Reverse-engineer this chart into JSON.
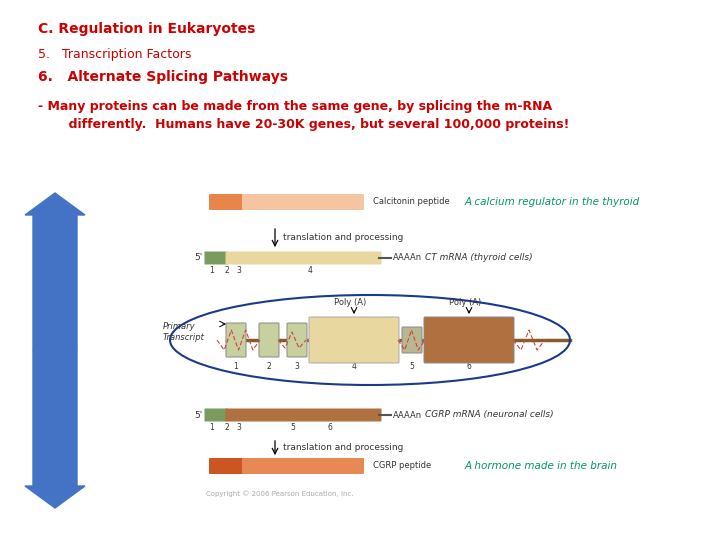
{
  "bg_color": "#ffffff",
  "title1": "C. Regulation in Eukaryotes",
  "title1_color": "#cc0000",
  "title2": "5.   Transcription Factors",
  "title2_color": "#cc0000",
  "title3": "6.   Alternate Splicing Pathways",
  "title3_color": "#cc0000",
  "body1_line1": "- Many proteins can be made from the same gene, by splicing the m-RNA",
  "body1_line2": "       differently.  Humans have 20-30K genes, but several 100,000 proteins!",
  "body_color": "#cc0000",
  "annotation1": "A calcium regulator in the thyroid",
  "annotation1_color": "#009966",
  "annotation2": "A hormone made in the brain",
  "annotation2_color": "#009966",
  "calcitonin_label": "Calcitonin peptide",
  "cgrp_label": "CGRP peptide",
  "ct_mrna_label": "CT mRNA (thyroid cells)",
  "cgrp_mrna_label": "CGRP mRNA (neuronal cells)",
  "translation1": "translation and processing",
  "translation2": "translation and processing",
  "primary_label": "Primary\nTranscript",
  "poly_a_label": "Poly (A)",
  "copyright": "Copyright © 2006 Pearson Education, Inc.",
  "arrow_color": "#4472c4",
  "five_prime": "5'",
  "aaaa": "AAAAn"
}
